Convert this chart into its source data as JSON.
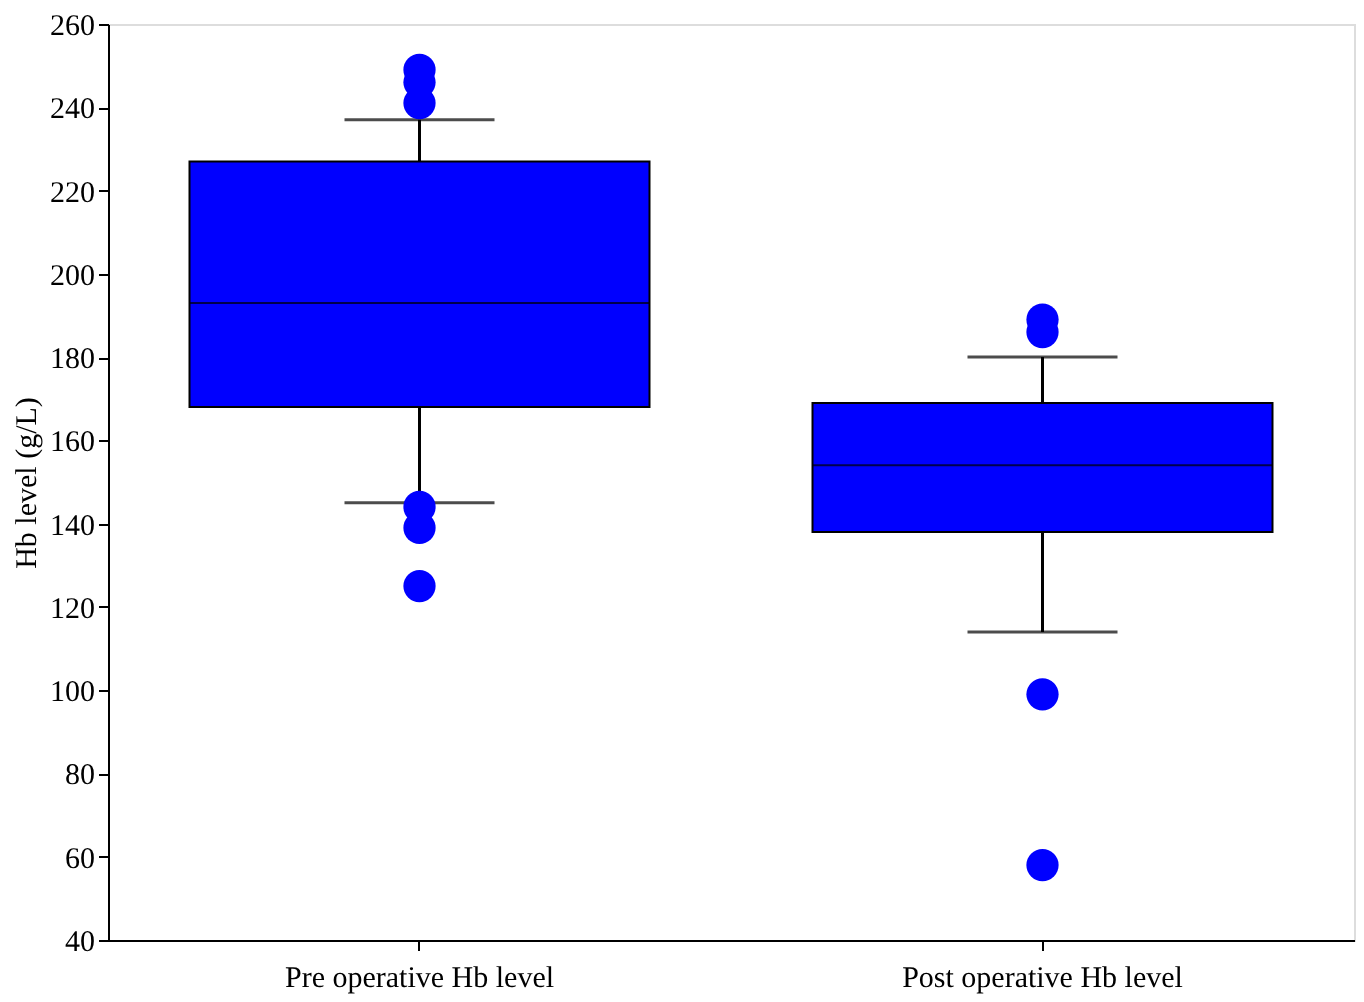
{
  "chart_data": {
    "type": "box",
    "ylabel": "Hb level (g/L)",
    "categories": [
      "Pre operative Hb level",
      "Post operative Hb level"
    ],
    "boxes": [
      {
        "low": 145,
        "q1": 168,
        "median": 193,
        "q3": 227,
        "high": 237,
        "outliers": [
          249,
          246,
          241,
          144,
          139,
          125
        ]
      },
      {
        "low": 114,
        "q1": 138,
        "median": 154,
        "q3": 169,
        "high": 180,
        "outliers": [
          189,
          186,
          99,
          58
        ]
      }
    ],
    "color": "#0000ff",
    "ylim": [
      40,
      260
    ],
    "yticks": [
      40,
      60,
      80,
      100,
      120,
      140,
      160,
      180,
      200,
      220,
      240,
      260
    ],
    "grid": false
  }
}
